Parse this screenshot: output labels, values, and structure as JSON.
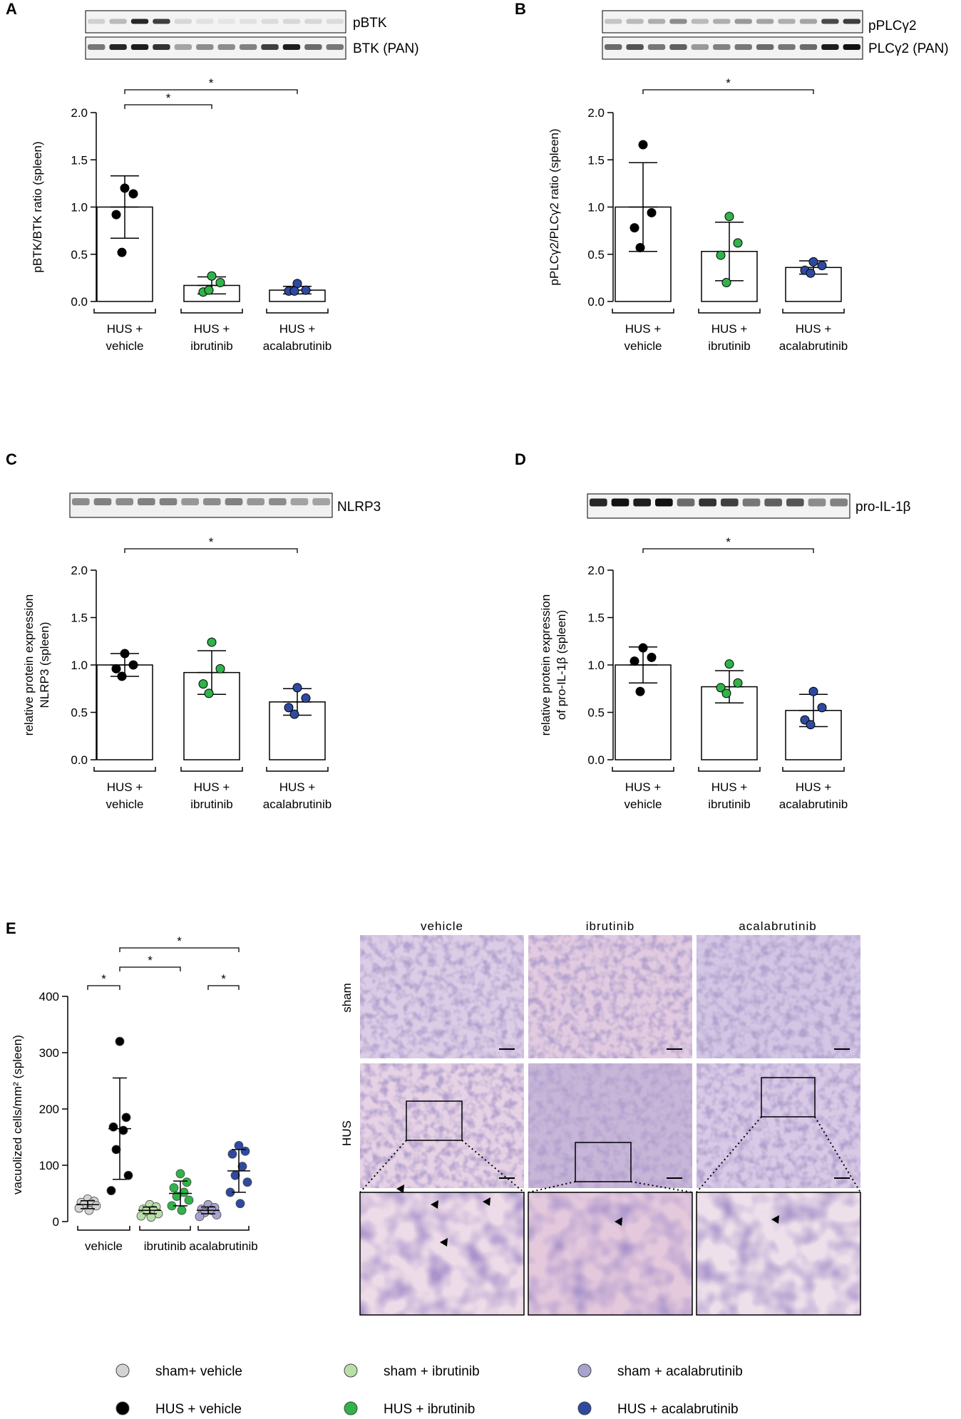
{
  "figure": {
    "panels": [
      {
        "letter": "A",
        "blots": [
          {
            "label": "pBTK"
          },
          {
            "label": "BTK (PAN)"
          }
        ]
      },
      {
        "letter": "B",
        "blots": [
          {
            "label": "pPLCγ2"
          },
          {
            "label": "PLCγ2 (PAN)"
          }
        ]
      },
      {
        "letter": "C",
        "blots": [
          {
            "label": "NLRP3"
          }
        ]
      },
      {
        "letter": "D",
        "blots": [
          {
            "label": "pro-IL-1β"
          }
        ]
      },
      {
        "letter": "E"
      }
    ],
    "histology": {
      "columns": [
        "vehicle",
        "ibrutinib",
        "acalabrutinib"
      ],
      "rows": [
        "sham",
        "HUS"
      ]
    },
    "legend": [
      {
        "label": "sham+ vehicle",
        "color": "#d3d3d3"
      },
      {
        "label": "HUS + vehicle",
        "color": "#000000"
      },
      {
        "label": "sham + ibrutinib",
        "color": "#b9dfa6"
      },
      {
        "label": "HUS + ibrutinib",
        "color": "#2fb34a"
      },
      {
        "label": "sham + acalabrutinib",
        "color": "#a7a3cf"
      },
      {
        "label": "HUS + acalabrutinib",
        "color": "#2e4aa0"
      }
    ]
  },
  "chart_data": [
    {
      "type": "bar",
      "panel": "A",
      "ylabel": "pBTK/BTK ratio (spleen)",
      "ylim": [
        0,
        2.0
      ],
      "yticks": [
        "0.0",
        "0.5",
        "1.0",
        "1.5",
        "2.0"
      ],
      "categories": [
        [
          "HUS +",
          "vehicle"
        ],
        [
          "HUS +",
          "ibrutinib"
        ],
        [
          "HUS +",
          "acalabrutinib"
        ]
      ],
      "values": [
        1.0,
        0.17,
        0.12
      ],
      "sd": [
        0.33,
        0.09,
        0.04
      ],
      "colors": [
        "#000000",
        "#2fb34a",
        "#2e4aa0"
      ],
      "points": [
        [
          1.2,
          1.14,
          0.92,
          0.52
        ],
        [
          0.27,
          0.2,
          0.1,
          0.12
        ],
        [
          0.19,
          0.12,
          0.11,
          0.11
        ]
      ],
      "significance": [
        {
          "from": 0,
          "to": 1,
          "label": "*"
        },
        {
          "from": 0,
          "to": 2,
          "label": "*"
        }
      ]
    },
    {
      "type": "bar",
      "panel": "B",
      "ylabel": "pPLCγ2/PLCγ2 ratio (spleen)",
      "ylim": [
        0,
        2.0
      ],
      "yticks": [
        "0.0",
        "0.5",
        "1.0",
        "1.5",
        "2.0"
      ],
      "categories": [
        [
          "HUS +",
          "vehicle"
        ],
        [
          "HUS +",
          "ibrutinib"
        ],
        [
          "HUS +",
          "acalabrutinib"
        ]
      ],
      "values": [
        1.0,
        0.53,
        0.36
      ],
      "sd": [
        0.47,
        0.31,
        0.07
      ],
      "colors": [
        "#000000",
        "#2fb34a",
        "#2e4aa0"
      ],
      "points": [
        [
          1.66,
          0.94,
          0.78,
          0.57
        ],
        [
          0.9,
          0.62,
          0.49,
          0.2
        ],
        [
          0.42,
          0.38,
          0.33,
          0.3
        ]
      ],
      "significance": [
        {
          "from": 0,
          "to": 2,
          "label": "*"
        }
      ]
    },
    {
      "type": "bar",
      "panel": "C",
      "ylabel": "relative protein expression NLRP3 (spleen)",
      "ylim": [
        0,
        2.0
      ],
      "yticks": [
        "0.0",
        "0.5",
        "1.0",
        "1.5",
        "2.0"
      ],
      "categories": [
        [
          "HUS +",
          "vehicle"
        ],
        [
          "HUS +",
          "ibrutinib"
        ],
        [
          "HUS +",
          "acalabrutinib"
        ]
      ],
      "values": [
        1.0,
        0.92,
        0.61
      ],
      "sd": [
        0.12,
        0.23,
        0.14
      ],
      "colors": [
        "#000000",
        "#2fb34a",
        "#2e4aa0"
      ],
      "points": [
        [
          1.12,
          1.0,
          0.96,
          0.88
        ],
        [
          1.24,
          0.96,
          0.8,
          0.7
        ],
        [
          0.76,
          0.65,
          0.55,
          0.48
        ]
      ],
      "significance": [
        {
          "from": 0,
          "to": 2,
          "label": "*"
        }
      ]
    },
    {
      "type": "bar",
      "panel": "D",
      "ylabel": "relative protein expression of pro-IL-1β (spleen)",
      "ylim": [
        0,
        2.0
      ],
      "yticks": [
        "0.0",
        "0.5",
        "1.0",
        "1.5",
        "2.0"
      ],
      "categories": [
        [
          "HUS +",
          "vehicle"
        ],
        [
          "HUS +",
          "ibrutinib"
        ],
        [
          "HUS +",
          "acalabrutinib"
        ]
      ],
      "values": [
        1.0,
        0.77,
        0.52
      ],
      "sd": [
        0.19,
        0.17,
        0.17
      ],
      "colors": [
        "#000000",
        "#2fb34a",
        "#2e4aa0"
      ],
      "points": [
        [
          1.18,
          1.08,
          1.04,
          0.72
        ],
        [
          1.01,
          0.81,
          0.76,
          0.7
        ],
        [
          0.72,
          0.55,
          0.42,
          0.37
        ]
      ],
      "significance": [
        {
          "from": 0,
          "to": 2,
          "label": "*"
        }
      ]
    },
    {
      "type": "scatter",
      "panel": "E",
      "ylabel": "vacuolized cells/mm² (spleen)",
      "ylim": [
        0,
        400
      ],
      "yticks": [
        "0",
        "100",
        "200",
        "300",
        "400"
      ],
      "categories": [
        "vehicle",
        "ibrutinib",
        "acalabrutinib"
      ],
      "groups": [
        {
          "category": 0,
          "name": "sham+ vehicle",
          "color": "#d3d3d3",
          "mean": 30,
          "sd": 7,
          "points": [
            40,
            36,
            34,
            32,
            30,
            28,
            24,
            20
          ]
        },
        {
          "category": 0,
          "name": "HUS + vehicle",
          "color": "#000000",
          "mean": 165,
          "sd": 90,
          "points": [
            320,
            185,
            168,
            162,
            128,
            82,
            55
          ]
        },
        {
          "category": 1,
          "name": "sham + ibrutinib",
          "color": "#b9dfa6",
          "mean": 20,
          "sd": 6,
          "points": [
            30,
            26,
            22,
            20,
            18,
            14,
            10,
            8
          ]
        },
        {
          "category": 1,
          "name": "HUS + ibrutinib",
          "color": "#2fb34a",
          "mean": 50,
          "sd": 22,
          "points": [
            85,
            70,
            60,
            52,
            45,
            38,
            28,
            20
          ]
        },
        {
          "category": 2,
          "name": "sham + acalabrutinib",
          "color": "#a7a3cf",
          "mean": 20,
          "sd": 6,
          "points": [
            30,
            25,
            22,
            20,
            16,
            12,
            9
          ]
        },
        {
          "category": 2,
          "name": "HUS + acalabrutinib",
          "color": "#2e4aa0",
          "mean": 90,
          "sd": 38,
          "points": [
            135,
            125,
            120,
            98,
            82,
            70,
            52,
            32
          ]
        }
      ],
      "significance": [
        {
          "from": 0,
          "to": 1,
          "label": "*"
        },
        {
          "from": 4,
          "to": 5,
          "label": "*"
        },
        {
          "from": 1,
          "to": 3,
          "label": "*"
        },
        {
          "from": 1,
          "to": 5,
          "label": "*"
        }
      ]
    }
  ]
}
